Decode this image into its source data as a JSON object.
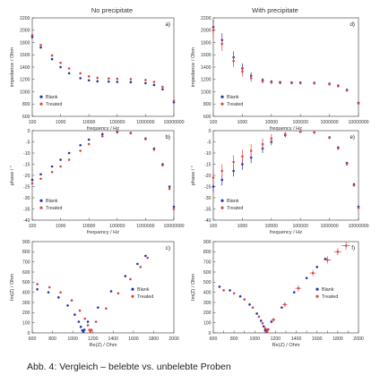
{
  "figure": {
    "column_titles": [
      "No precipitate",
      "With precipitate"
    ],
    "caption": "Abb. 4: Vergleich – belebte vs. unbelebte Proben",
    "colors": {
      "blank": "#2233aa",
      "treated": "#dd4444"
    }
  },
  "chart_data": [
    {
      "type": "scatter",
      "panel": "a)",
      "column": "No precipitate",
      "xlabel": "frequency / Hz",
      "ylabel": "impedance / Ohm",
      "xscale": "log",
      "xlim": [
        100,
        10000000
      ],
      "ylim": [
        600,
        2200
      ],
      "xticks": [
        100,
        1000,
        10000,
        100000,
        1000000,
        10000000
      ],
      "xticklabels": [
        "100",
        "1000",
        "10000",
        "100000",
        "1000000",
        "10000000"
      ],
      "yticks": [
        600,
        800,
        1000,
        1200,
        1400,
        1600,
        1800,
        2000,
        2200
      ],
      "yticklabels": [
        "600",
        "800",
        "1000",
        "1200",
        "1400",
        "1600",
        "1800",
        "2000",
        "2200"
      ],
      "legend": [
        "Blank",
        "Treated"
      ],
      "legend_position": "lower-left",
      "series": [
        {
          "name": "Blank",
          "x": [
            100,
            200,
            500,
            1000,
            2000,
            5000,
            10000,
            20000,
            50000,
            100000,
            300000,
            1000000,
            2000000,
            4000000,
            10000000
          ],
          "values": [
            1890,
            1720,
            1530,
            1400,
            1300,
            1220,
            1185,
            1170,
            1165,
            1160,
            1155,
            1140,
            1110,
            1040,
            830
          ]
        },
        {
          "name": "Treated",
          "x": [
            100,
            200,
            500,
            1000,
            2000,
            5000,
            10000,
            20000,
            50000,
            100000,
            300000,
            1000000,
            2000000,
            4000000,
            10000000
          ],
          "values": [
            1920,
            1760,
            1590,
            1470,
            1380,
            1300,
            1250,
            1225,
            1215,
            1210,
            1205,
            1190,
            1160,
            1080,
            850
          ]
        }
      ]
    },
    {
      "type": "scatter",
      "panel": "d)",
      "column": "With precipitate",
      "xlabel": "frequency / Hz",
      "ylabel": "impedance / Ohm",
      "xscale": "log",
      "xlim": [
        100,
        10000000
      ],
      "ylim": [
        600,
        2200
      ],
      "xticks": [
        100,
        1000,
        10000,
        100000,
        1000000,
        10000000
      ],
      "xticklabels": [
        "100",
        "1000",
        "10000",
        "100000",
        "1000000",
        "10000000"
      ],
      "yticks": [
        600,
        800,
        1000,
        1200,
        1400,
        1600,
        1800,
        2000,
        2200
      ],
      "yticklabels": [
        "600",
        "800",
        "1000",
        "1200",
        "1400",
        "1600",
        "1800",
        "2000",
        "2200"
      ],
      "legend": [
        "Blank",
        "Treated"
      ],
      "legend_position": "lower-left",
      "series": [
        {
          "name": "Blank",
          "x": [
            100,
            200,
            500,
            1000,
            2000,
            5000,
            10000,
            20000,
            50000,
            100000,
            300000,
            1000000,
            2000000,
            4000000,
            10000000
          ],
          "values": [
            2050,
            1840,
            1560,
            1380,
            1260,
            1190,
            1165,
            1155,
            1150,
            1148,
            1145,
            1130,
            1100,
            1030,
            820
          ],
          "error": [
            120,
            110,
            95,
            80,
            55,
            30,
            15,
            8,
            5,
            5,
            5,
            5,
            5,
            8,
            10
          ]
        },
        {
          "name": "Treated",
          "x": [
            100,
            200,
            500,
            1000,
            2000,
            5000,
            10000,
            20000,
            50000,
            100000,
            300000,
            1000000,
            2000000,
            4000000,
            10000000
          ],
          "values": [
            2000,
            1780,
            1500,
            1330,
            1220,
            1170,
            1150,
            1142,
            1140,
            1138,
            1135,
            1120,
            1090,
            1020,
            810
          ],
          "error": [
            130,
            120,
            100,
            85,
            60,
            35,
            18,
            10,
            6,
            5,
            5,
            5,
            5,
            8,
            10
          ]
        }
      ]
    },
    {
      "type": "scatter",
      "panel": "b)",
      "column": "No precipitate",
      "xlabel": "frequency / Hz",
      "ylabel": "phase / °",
      "xscale": "log",
      "xlim": [
        100,
        10000000
      ],
      "ylim": [
        -40,
        0
      ],
      "xticks": [
        100,
        1000,
        10000,
        100000,
        1000000,
        10000000
      ],
      "xticklabels": [
        "100",
        "1000",
        "10000",
        "100000",
        "1000000",
        "10000000"
      ],
      "yticks": [
        -40,
        -35,
        -30,
        -25,
        -20,
        -15,
        -10,
        -5,
        0
      ],
      "yticklabels": [
        "-40",
        "-35",
        "-30",
        "-25",
        "-20",
        "-15",
        "-10",
        "-5",
        "0"
      ],
      "legend": [
        "Blank",
        "Treated"
      ],
      "legend_position": "lower-left",
      "series": [
        {
          "name": "Blank",
          "x": [
            100,
            200,
            500,
            1000,
            2000,
            5000,
            10000,
            30000,
            100000,
            300000,
            1000000,
            2000000,
            4000000,
            7000000,
            10000000
          ],
          "values": [
            -22,
            -19.5,
            -16,
            -13,
            -10,
            -6.5,
            -4,
            -1.5,
            -0.5,
            -1,
            -3.5,
            -8,
            -15,
            -25,
            -34
          ]
        },
        {
          "name": "Treated",
          "x": [
            100,
            200,
            500,
            1000,
            2000,
            5000,
            10000,
            30000,
            100000,
            300000,
            1000000,
            2000000,
            4000000,
            7000000,
            10000000
          ],
          "values": [
            -23.5,
            -21.5,
            -18.5,
            -16,
            -13,
            -9,
            -6,
            -2.5,
            -0.8,
            -1.2,
            -3.8,
            -8.5,
            -15.5,
            -26,
            -35
          ]
        }
      ]
    },
    {
      "type": "scatter",
      "panel": "e)",
      "column": "With precipitate",
      "xlabel": "frequency / Hz",
      "ylabel": "phase / °",
      "xscale": "log",
      "xlim": [
        100,
        10000000
      ],
      "ylim": [
        -40,
        0
      ],
      "xticks": [
        100,
        1000,
        10000,
        100000,
        1000000,
        10000000
      ],
      "xticklabels": [
        "100",
        "1000",
        "10000",
        "100000",
        "1000000",
        "10000000"
      ],
      "yticks": [
        -40,
        -35,
        -30,
        -25,
        -20,
        -15,
        -10,
        -5,
        0
      ],
      "yticklabels": [
        "-40",
        "-35",
        "-30",
        "-25",
        "-20",
        "-15",
        "-10",
        "-5",
        "0"
      ],
      "legend": [
        "Blank",
        "Treated"
      ],
      "legend_position": "lower-left",
      "series": [
        {
          "name": "Blank",
          "x": [
            100,
            200,
            500,
            1000,
            2000,
            5000,
            10000,
            30000,
            100000,
            300000,
            1000000,
            2000000,
            4000000,
            7000000,
            10000000
          ],
          "values": [
            -25,
            -22,
            -18,
            -15,
            -12,
            -8,
            -5,
            -2,
            -0.5,
            -0.8,
            -3,
            -7.5,
            -14.5,
            -24,
            -34
          ],
          "error": [
            2.5,
            2.5,
            2.5,
            2.5,
            2.5,
            2,
            1.5,
            1,
            0.5,
            0.5,
            0.5,
            0.5,
            0.5,
            0.5,
            0.5
          ]
        },
        {
          "name": "Treated",
          "x": [
            100,
            200,
            500,
            1000,
            2000,
            5000,
            10000,
            30000,
            100000,
            300000,
            1000000,
            2000000,
            4000000,
            7000000,
            10000000
          ],
          "values": [
            -21,
            -18,
            -14,
            -11.5,
            -9,
            -6,
            -3.5,
            -1.5,
            -0.5,
            -0.8,
            -3.2,
            -8,
            -15,
            -24.5,
            -34.5
          ],
          "error": [
            3,
            3,
            3,
            3,
            3,
            2.5,
            2,
            1,
            0.5,
            0.5,
            0.5,
            0.5,
            0.5,
            0.5,
            0.5
          ]
        }
      ]
    },
    {
      "type": "scatter",
      "panel": "c)",
      "column": "No precipitate",
      "xlabel": "Re(Z) / Ohm",
      "ylabel": "Im(Z) / Ohm",
      "xscale": "linear",
      "xlim": [
        600,
        2000
      ],
      "ylim": [
        0,
        900
      ],
      "xticks": [
        600,
        800,
        1000,
        1200,
        1400,
        1600,
        1800,
        2000
      ],
      "xticklabels": [
        "600",
        "800",
        "1000",
        "1200",
        "1400",
        "1600",
        "1800",
        "2000"
      ],
      "yticks": [
        0,
        100,
        200,
        300,
        400,
        500,
        600,
        700,
        800,
        900
      ],
      "yticklabels": [
        "0",
        "100",
        "200",
        "300",
        "400",
        "500",
        "600",
        "700",
        "800",
        "900"
      ],
      "legend": [
        "Blank",
        "Treated"
      ],
      "legend_position": "center-right",
      "series": [
        {
          "name": "Blank",
          "x": [
            650,
            760,
            860,
            950,
            1020,
            1060,
            1080,
            1095,
            1105,
            1115,
            1150,
            1250,
            1380,
            1520,
            1640,
            1720
          ],
          "values": [
            430,
            400,
            350,
            270,
            180,
            110,
            60,
            25,
            10,
            30,
            110,
            250,
            410,
            560,
            680,
            760
          ]
        },
        {
          "name": "Treated",
          "x": [
            650,
            770,
            880,
            990,
            1070,
            1120,
            1150,
            1165,
            1175,
            1185,
            1230,
            1330,
            1450,
            1570,
            1670,
            1740
          ],
          "values": [
            480,
            450,
            400,
            320,
            220,
            140,
            75,
            30,
            10,
            30,
            110,
            240,
            390,
            530,
            650,
            740
          ]
        }
      ]
    },
    {
      "type": "scatter",
      "panel": "f)",
      "column": "With precipitate",
      "xlabel": "Re(Z) / Ohm",
      "ylabel": "Im(Z) / Ohm",
      "xscale": "linear",
      "xlim": [
        600,
        2000
      ],
      "ylim": [
        0,
        900
      ],
      "xticks": [
        600,
        700,
        800,
        900,
        1000,
        1100,
        1200,
        1300,
        1400,
        1500,
        1600,
        1700,
        1800,
        1900,
        2000
      ],
      "xticklabels": [
        "600",
        "",
        "800",
        "",
        "1000",
        "",
        "1200",
        "",
        "1400",
        "",
        "1600",
        "",
        "1800",
        "",
        "2000"
      ],
      "yticks": [
        0,
        100,
        200,
        300,
        400,
        500,
        600,
        700,
        800,
        900
      ],
      "yticklabels": [
        "0",
        "100",
        "200",
        "300",
        "400",
        "500",
        "600",
        "700",
        "800",
        "900"
      ],
      "legend": [
        "Blank",
        "Treated"
      ],
      "legend_position": "center-right",
      "series": [
        {
          "name": "Blank",
          "x": [
            660,
            760,
            860,
            950,
            1020,
            1060,
            1085,
            1100,
            1110,
            1120,
            1160,
            1260,
            1380,
            1500,
            1600,
            1680
          ],
          "values": [
            455,
            420,
            360,
            280,
            190,
            120,
            65,
            25,
            10,
            30,
            110,
            250,
            400,
            540,
            650,
            730
          ]
        },
        {
          "name": "Treated",
          "x": [
            700,
            800,
            900,
            980,
            1040,
            1075,
            1100,
            1112,
            1120,
            1130,
            1180,
            1290,
            1420,
            1560,
            1700,
            1800,
            1880
          ],
          "values": [
            420,
            390,
            330,
            250,
            160,
            95,
            45,
            15,
            8,
            35,
            130,
            280,
            440,
            590,
            720,
            800,
            860
          ],
          "error_x": [
            10,
            10,
            10,
            10,
            10,
            10,
            10,
            10,
            10,
            15,
            20,
            25,
            30,
            30,
            35,
            35,
            40
          ],
          "error": [
            10,
            10,
            10,
            10,
            10,
            10,
            10,
            10,
            10,
            15,
            20,
            25,
            30,
            30,
            35,
            35,
            40
          ]
        }
      ]
    }
  ]
}
